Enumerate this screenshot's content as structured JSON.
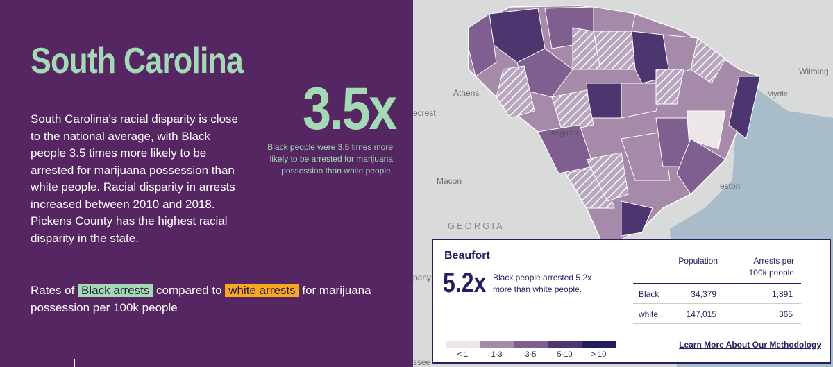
{
  "state": {
    "title": "South Carolina",
    "description": "South Carolina's racial disparity is close to the national average, with Black people 3.5 times more likely to be arrested for marijuana possession than white people. Racial disparity in arrests increased between 2010 and 2018. Pickens County has the highest racial disparity in the state.",
    "disparity": "3.5x",
    "disparity_caption": "Black people were 3.5 times more likely to be arrested for marijuana possession than white people."
  },
  "rates": {
    "prefix": "Rates of",
    "black_label": "Black arrests",
    "middle": "compared to",
    "white_label": "white arrests",
    "suffix": "for marijuana possession per 100k people"
  },
  "map": {
    "labels": [
      "Athens",
      "Macon",
      "GEORGIA",
      "Augusta",
      "Wilming",
      "Myrtle",
      "eston",
      "ecrest",
      "pany",
      "ssee"
    ]
  },
  "colors": {
    "background": "#552662",
    "accent_green": "#a3d9b5",
    "accent_orange": "#f6a821",
    "navy": "#231f5e"
  },
  "panel": {
    "county": "Beaufort",
    "multiplier": "5.2x",
    "caption": "Black people arrested 5.2x more than white people.",
    "col_population": "Population",
    "col_arrests": "Arrests per 100k people",
    "rows": [
      {
        "race": "Black",
        "population": "34,379",
        "arrests": "1,891"
      },
      {
        "race": "white",
        "population": "147,015",
        "arrests": "365"
      }
    ],
    "legend": [
      {
        "label": "< 1",
        "color": "#ece6ea"
      },
      {
        "label": "1-3",
        "color": "#a58aa9"
      },
      {
        "label": "3-5",
        "color": "#7e5f8f"
      },
      {
        "label": "5-10",
        "color": "#4d3670"
      },
      {
        "label": "> 10",
        "color": "#231f5e"
      }
    ],
    "methodology_link": "Learn More About Our Methodology"
  }
}
